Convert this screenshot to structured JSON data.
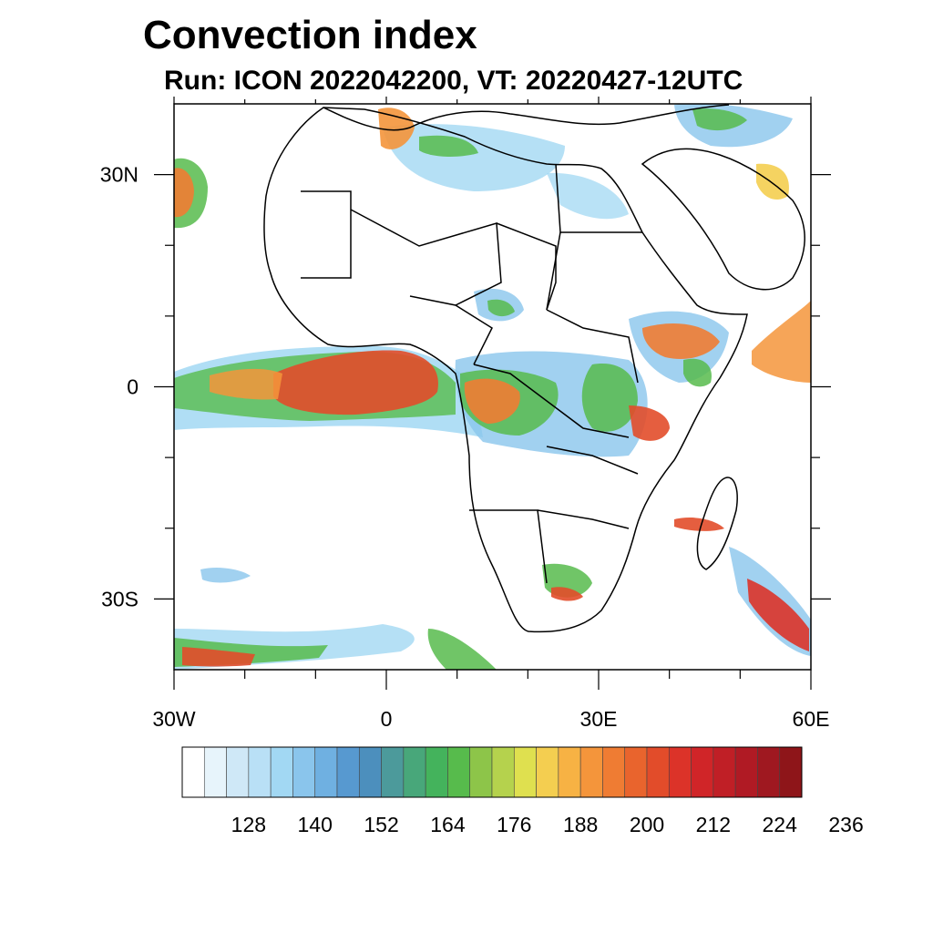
{
  "title": "Convection index",
  "subtitle": "Run: ICON 2022042200,  VT: 20220427-12UTC",
  "map": {
    "lon_range": [
      -30,
      60
    ],
    "lat_range": [
      -40,
      40
    ],
    "x_tick_labels": [
      {
        "lon": -30,
        "label": "30W"
      },
      {
        "lon": 0,
        "label": "0"
      },
      {
        "lon": 30,
        "label": "30E"
      },
      {
        "lon": 60,
        "label": "60E"
      }
    ],
    "y_tick_labels": [
      {
        "lat": 30,
        "label": "30N"
      },
      {
        "lat": 0,
        "label": "0"
      },
      {
        "lat": -30,
        "label": "30S"
      }
    ],
    "minor_lon_ticks": [
      -20,
      -10,
      10,
      20,
      40,
      50
    ],
    "minor_lat_ticks": [
      20,
      10,
      -10,
      -20
    ]
  },
  "colorbar": {
    "colors": [
      "#ffffff",
      "#e7f4fb",
      "#cfe8f7",
      "#b9e0f6",
      "#a2d8f3",
      "#8ac5ec",
      "#6fb0e1",
      "#5799d0",
      "#4c8fbd",
      "#4c9a9b",
      "#48a77a",
      "#44b35c",
      "#57bb4c",
      "#8dc549",
      "#b5d24d",
      "#dfe04f",
      "#f4ce50",
      "#f7b244",
      "#f4953b",
      "#ef7c33",
      "#e9642d",
      "#e24c2a",
      "#dc3329",
      "#d02528",
      "#c01f26",
      "#b01a24",
      "#9f1820",
      "#8e1519"
    ],
    "labels": [
      "128",
      "140",
      "152",
      "164",
      "176",
      "188",
      "200",
      "212",
      "224",
      "236"
    ]
  }
}
